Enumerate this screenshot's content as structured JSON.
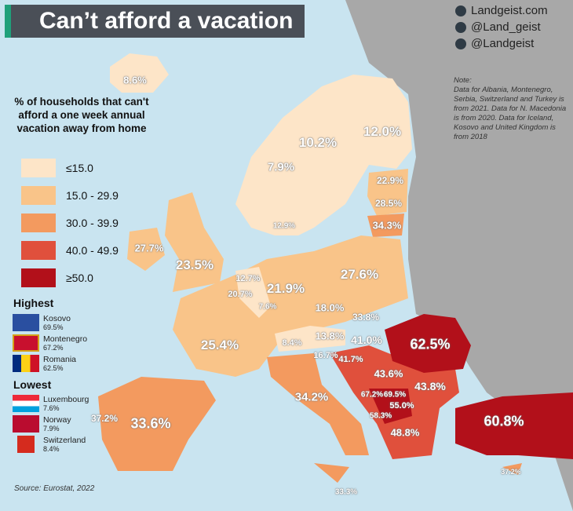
{
  "header": {
    "title": "Can’t afford a vacation",
    "social": [
      "Landgeist.com",
      "@Land_geist",
      "@Landgeist"
    ]
  },
  "note": {
    "heading": "Note:",
    "text": "Data for Albania, Montenegro, Serbia, Switzerland and Turkey is from 2021. Data for N. Macedonia is from 2020. Data for Iceland, Kosovo and United Kingdom is from 2018"
  },
  "legend": {
    "title": "% of households that can't afford a one week annual vacation away from home",
    "items": [
      {
        "label": "≤15.0",
        "color": "#fde5c8"
      },
      {
        "label": "15.0 - 29.9",
        "color": "#f9c489"
      },
      {
        "label": "30.0 - 39.9",
        "color": "#f39a5f"
      },
      {
        "label": "40.0 - 49.9",
        "color": "#e0503c"
      },
      {
        "label": "≥50.0",
        "color": "#b2101a"
      }
    ]
  },
  "highest": {
    "title": "Highest",
    "items": [
      {
        "name": "Kosovo",
        "value": "69.5%"
      },
      {
        "name": "Montenegro",
        "value": "67.2%"
      },
      {
        "name": "Romania",
        "value": "62.5%"
      }
    ]
  },
  "lowest": {
    "title": "Lowest",
    "items": [
      {
        "name": "Luxembourg",
        "value": "7.6%"
      },
      {
        "name": "Norway",
        "value": "7.9%"
      },
      {
        "name": "Switzerland",
        "value": "8.4%"
      }
    ]
  },
  "map_labels": [
    "8.6%",
    "12.0%",
    "10.2%",
    "7.9%",
    "22.9%",
    "28.5%",
    "34.3%",
    "12.9%",
    "27.7%",
    "23.5%",
    "12.7%",
    "20.7%",
    "21.9%",
    "27.6%",
    "7.6%",
    "18.0%",
    "33.8%",
    "25.4%",
    "8.4%",
    "13.8%",
    "41.0%",
    "62.5%",
    "16.7%",
    "41.7%",
    "43.6%",
    "43.8%",
    "37.2%",
    "33.6%",
    "34.2%",
    "67.2%",
    "69.5%",
    "55.0%",
    "58.3%",
    "60.8%",
    "48.8%",
    "37.2%",
    "33.3%"
  ],
  "source": "Source: Eurostat, 2022"
}
